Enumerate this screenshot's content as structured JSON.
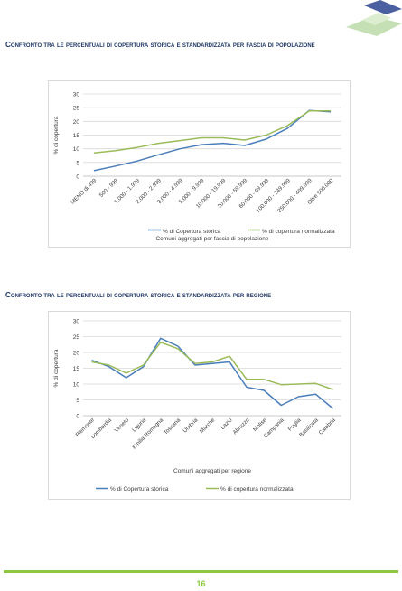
{
  "document": {
    "page_number": "16",
    "colors": {
      "accent_green": "#8dc63f",
      "title_blue": "#1f3864",
      "logo_blue": "#4a5fa0",
      "logo_green": "#c5e0b4"
    }
  },
  "chart_data": [
    {
      "type": "line",
      "title": "Confronto tra le percentuali di copertura storica e standardizzata per fascia di popolazione",
      "xlabel": "Comuni aggregati per fascia di popolazione",
      "ylabel": "% di copertura",
      "ylim": [
        0,
        30
      ],
      "yticks": [
        0,
        5,
        10,
        15,
        20,
        25,
        30
      ],
      "grid": true,
      "legend_position": "bottom",
      "categories": [
        "MENO di 499",
        "500 - 999",
        "1.000 - 1.999",
        "2.000 - 2.999",
        "3.000 - 4.999",
        "5.000 - 9.999",
        "10.000 - 19.999",
        "20.000 - 59.999",
        "60.000 - 99.999",
        "100.000 - 249.999",
        "250.000 - 499.999",
        "Oltre 500.000"
      ],
      "series": [
        {
          "name": "% di Copertura storica",
          "color": "#4a7ebb",
          "values": [
            2,
            3.7,
            5.5,
            7.8,
            10,
            11.5,
            12,
            11.2,
            13.5,
            17.5,
            24,
            23.5
          ]
        },
        {
          "name": "% di copertura normalizzata",
          "color": "#9bbb59",
          "values": [
            8.5,
            9.3,
            10.5,
            12,
            13,
            14,
            14,
            13.2,
            15,
            18.5,
            23.8,
            23.8
          ]
        }
      ]
    },
    {
      "type": "line",
      "title": "Confronto tra le percentuali di copertura storica e standardizzata per regione",
      "xlabel": "Comuni aggregati per regione",
      "ylabel": "% di copertura",
      "ylim": [
        0,
        30
      ],
      "yticks": [
        0,
        5,
        10,
        15,
        20,
        25,
        30
      ],
      "grid": true,
      "legend_position": "bottom",
      "categories": [
        "Piemonte",
        "Lombardia",
        "Veneto",
        "Liguria",
        "Emilia Romagna",
        "Toscana",
        "Umbria",
        "Marche",
        "Lazio",
        "Abruzzo",
        "Molise",
        "Campania",
        "Puglia",
        "Basilicata",
        "Calabria"
      ],
      "series": [
        {
          "name": "% di Copertura storica",
          "color": "#4a7ebb",
          "values": [
            17.5,
            15.5,
            12,
            15.5,
            24.5,
            22,
            16,
            16.5,
            17,
            9,
            8,
            3.3,
            6,
            6.8,
            2.3
          ]
        },
        {
          "name": "% di copertura normalizzata",
          "color": "#9bbb59",
          "values": [
            17,
            16,
            13.5,
            16,
            23.2,
            21.2,
            16.5,
            17,
            18.8,
            11.5,
            11.5,
            9.8,
            10,
            10.2,
            8.3
          ]
        }
      ]
    }
  ]
}
